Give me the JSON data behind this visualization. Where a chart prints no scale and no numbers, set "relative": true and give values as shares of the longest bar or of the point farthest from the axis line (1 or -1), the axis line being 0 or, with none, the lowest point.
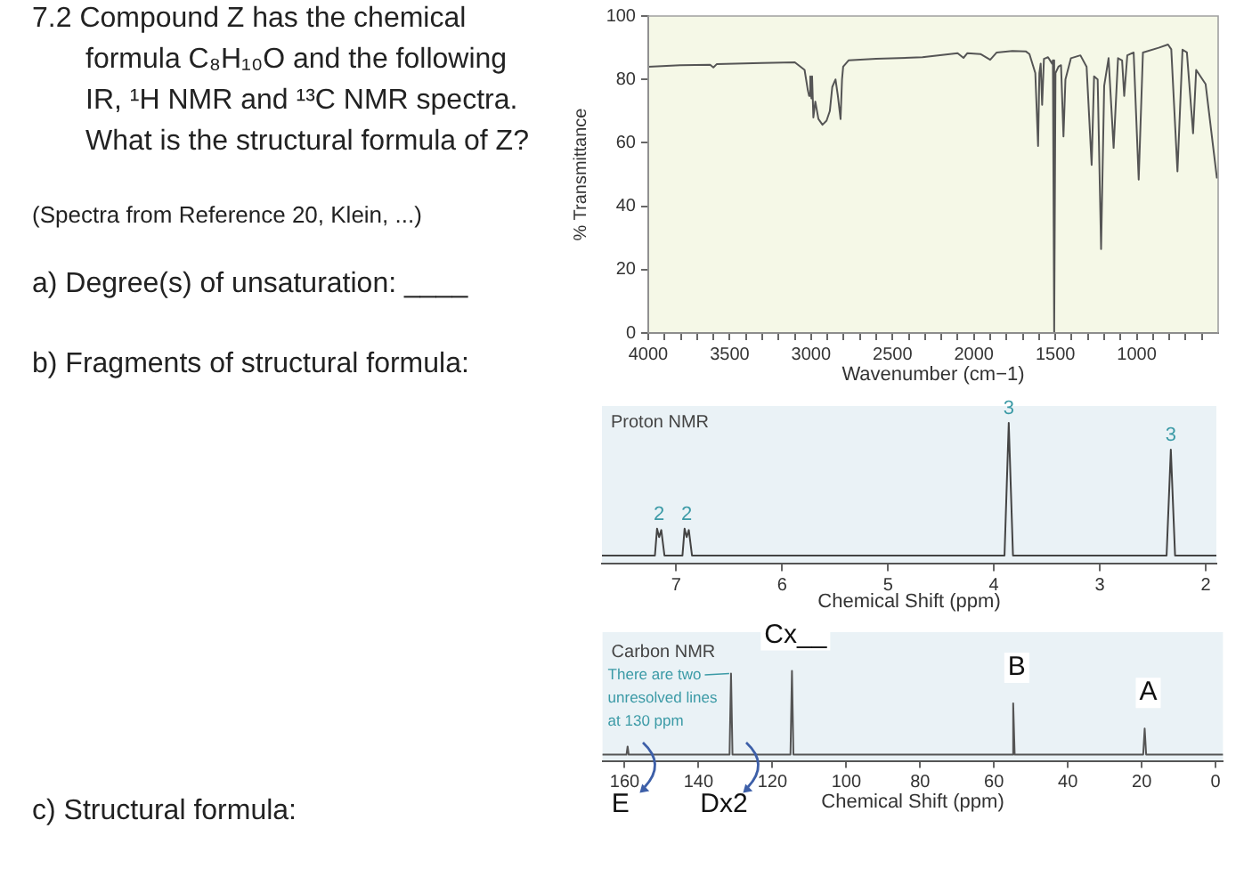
{
  "chart_data": [
    {
      "type": "other",
      "title": "7.2 Compound Z has the chemical formula C₈H₁₀O and the following IR, ¹H NMR and ¹³C NMR spectra. What is the structural formula of Z?",
      "annotations": [
        "(Spectra from Reference 20, Klein, ...)",
        "a) Degree(s) of unsaturation: ____",
        "b) Fragments of structural formula:",
        "c) Structural formula:"
      ]
    },
    {
      "type": "line",
      "xlabel": "Wavenumber (cm−1)",
      "ylabel": "% Transmittance",
      "color": "#555555",
      "x": [
        4000,
        3800,
        3620,
        3600,
        3580,
        3300,
        3100,
        3040,
        3020,
        3012,
        3005,
        2998,
        2994,
        2986,
        2974,
        2955,
        2930,
        2905,
        2885,
        2870,
        2850,
        2836,
        2819,
        2810,
        2803,
        2770,
        2600,
        2316,
        2100,
        2064,
        2040,
        1960,
        1900,
        1860,
        1764,
        1680,
        1659,
        1623,
        1606,
        1598,
        1590,
        1581,
        1570,
        1545,
        1520,
        1515,
        1507,
        1499,
        1481,
        1465,
        1450,
        1438,
        1404,
        1346,
        1308,
        1277,
        1262,
        1240,
        1219,
        1200,
        1173,
        1142,
        1115,
        1090,
        1077,
        1058,
        1019,
        988,
        962,
        865,
        808,
        788,
        750,
        719,
        692,
        654,
        635,
        577,
        508
      ],
      "values": [
        84,
        84.5,
        84.6,
        83.8,
        84.8,
        85.2,
        85.4,
        83,
        76.6,
        74.8,
        81,
        74,
        81,
        68,
        73,
        67.5,
        65.7,
        67,
        70,
        77.6,
        80,
        75,
        67.5,
        80,
        84,
        86,
        86.5,
        87,
        88.3,
        86.8,
        88.3,
        88,
        86.2,
        88.5,
        89,
        88.8,
        88,
        82,
        59,
        82,
        85,
        72,
        86.5,
        87,
        85,
        86,
        0,
        82,
        84,
        84.5,
        62,
        80,
        86.7,
        87.6,
        84,
        53,
        81,
        80,
        26.5,
        78,
        86.7,
        58.4,
        86.7,
        86,
        74.8,
        87.6,
        88.5,
        48.4,
        88.5,
        90,
        91,
        89.5,
        51,
        89.4,
        88.5,
        63,
        83,
        78.5,
        49
      ],
      "xlim": [
        4000,
        500
      ],
      "xticks": [
        4000,
        {
          "value": 3900,
          "label": null
        },
        {
          "value": 3800,
          "label": null
        },
        {
          "value": 3700,
          "label": null
        },
        {
          "value": 3600,
          "label": null
        },
        3500,
        {
          "value": 3400,
          "label": null
        },
        {
          "value": 3300,
          "label": null
        },
        {
          "value": 3200,
          "label": null
        },
        {
          "value": 3100,
          "label": null
        },
        3000,
        {
          "value": 2900,
          "label": null
        },
        {
          "value": 2800,
          "label": null
        },
        {
          "value": 2700,
          "label": null
        },
        {
          "value": 2600,
          "label": null
        },
        2500,
        {
          "value": 2400,
          "label": null
        },
        {
          "value": 2300,
          "label": null
        },
        {
          "value": 2200,
          "label": null
        },
        {
          "value": 2100,
          "label": null
        },
        2000,
        {
          "value": 1900,
          "label": null
        },
        {
          "value": 1800,
          "label": null
        },
        {
          "value": 1700,
          "label": null
        },
        {
          "value": 1600,
          "label": null
        },
        1500,
        {
          "value": 1400,
          "label": null
        },
        {
          "value": 1300,
          "label": null
        },
        {
          "value": 1200,
          "label": null
        },
        {
          "value": 1100,
          "label": null
        },
        1000,
        {
          "value": 900,
          "label": null
        },
        {
          "value": 800,
          "label": null
        },
        {
          "value": 700,
          "label": null
        },
        {
          "value": 600,
          "label": null
        }
      ],
      "ylim": [
        0,
        100
      ],
      "yticks": [
        0,
        20,
        40,
        60,
        80,
        100
      ]
    },
    {
      "type": "line",
      "title": "Proton NMR",
      "xlabel": "Chemical Shift (ppm)",
      "color": "#444444",
      "relative": true,
      "tick_labels": "x",
      "x": [
        7.7,
        7.2,
        7.18,
        7.16,
        7.14,
        7.11,
        6.94,
        6.92,
        6.9,
        6.88,
        6.85,
        3.9,
        3.86,
        3.82,
        2.37,
        2.33,
        2.29,
        1.9
      ],
      "values": [
        0.06,
        0.06,
        0.25,
        0.19,
        0.24,
        0.06,
        0.06,
        0.25,
        0.19,
        0.24,
        0.06,
        0.06,
        1,
        0.06,
        0.06,
        0.81,
        0.06,
        0.06
      ],
      "xlim": [
        7.7,
        1.9
      ],
      "xticks": [
        7,
        6,
        5,
        4,
        3,
        2
      ],
      "annotations": [
        {
          "text": "2",
          "x": 7.16,
          "y": 0.25
        },
        {
          "text": "2",
          "x": 6.9,
          "y": 0.25
        },
        {
          "text": "3",
          "x": 3.86,
          "y": 1
        },
        {
          "text": "3",
          "x": 2.33,
          "y": 0.81
        }
      ]
    },
    {
      "type": "line",
      "title": "Carbon NMR",
      "xlabel": "Chemical Shift (ppm)",
      "color": "#555555",
      "relative": true,
      "tick_labels": "x",
      "x": [
        166,
        159.5,
        159.2,
        158.9,
        131.6,
        131.2,
        130.8,
        115.1,
        114.7,
        114.3,
        55.2,
        54.8,
        54.4,
        19.6,
        19.2,
        18.8,
        -2
      ],
      "values": [
        0.07,
        0.07,
        0.16,
        0.07,
        0.07,
        0.97,
        0.07,
        0.07,
        1,
        0.07,
        0.07,
        0.64,
        0.07,
        0.07,
        0.36,
        0.07,
        0.07
      ],
      "xlim": [
        166,
        -2
      ],
      "xticks": [
        160,
        140,
        120,
        100,
        80,
        60,
        40,
        20,
        0
      ],
      "annotations": [
        {
          "text": "There are two unresolved lines at 130 ppm",
          "x": 131.2,
          "y": 0.97
        },
        {
          "text": "Cx__",
          "x": 114.7,
          "y": 1
        },
        {
          "text": "B",
          "x": 54.8,
          "y": 0.64
        },
        {
          "text": "A",
          "x": 19.2,
          "y": 0.36
        },
        {
          "text": "E",
          "x": 159.2,
          "y": 0.07
        },
        {
          "text": "Dx2",
          "x": 131.2,
          "y": 0.07
        }
      ]
    }
  ]
}
